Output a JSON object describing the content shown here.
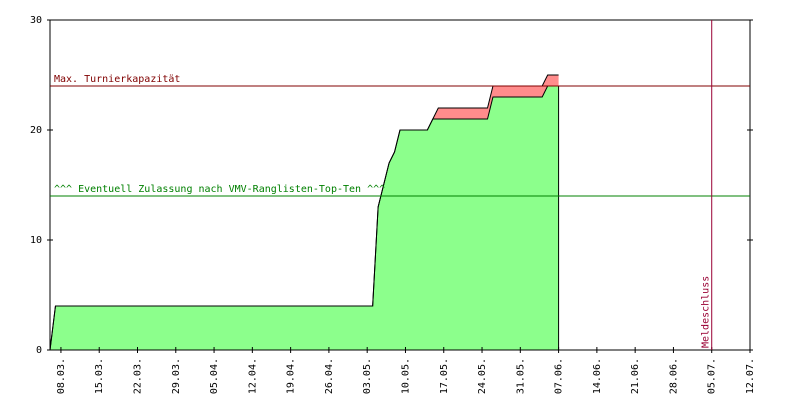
{
  "chart_data": {
    "type": "stacked-area",
    "x": [
      "06.03.",
      "07.03.",
      "04.05.",
      "05.05.",
      "07.05.",
      "08.05.",
      "09.05.",
      "14.05.",
      "15.05.",
      "16.05.",
      "25.05.",
      "26.05.",
      "04.06.",
      "05.06.",
      "07.06."
    ],
    "series": [
      {
        "color": "#8cff8c",
        "values": [
          0,
          4,
          4,
          13,
          17,
          18,
          20,
          20,
          21,
          21,
          21,
          23,
          23,
          24,
          24
        ]
      },
      {
        "color": "#ff8c8c",
        "values": [
          0,
          0,
          0,
          0,
          0,
          0,
          0,
          0,
          0,
          1,
          1,
          1,
          1,
          1,
          1
        ]
      }
    ],
    "xlim": [
      "06.03.",
      "12.07."
    ],
    "xticks": [
      "08.03.",
      "15.03.",
      "22.03.",
      "29.03.",
      "05.04.",
      "12.04.",
      "19.04.",
      "26.04.",
      "03.05.",
      "10.05.",
      "17.05.",
      "24.05.",
      "31.05.",
      "07.06.",
      "14.06.",
      "21.06.",
      "28.06.",
      "05.07.",
      "12.07."
    ],
    "ylim": [
      0,
      30
    ],
    "yticks": [
      0,
      10,
      20,
      30
    ],
    "hlines": [
      {
        "value": 24,
        "label": "Max. Turnierkapazität",
        "color": "#800000"
      },
      {
        "value": 14,
        "label": "^^^ Eventuell Zulassung nach VMV-Ranglisten-Top-Ten ^^^",
        "color": "#008000"
      }
    ],
    "vlines": [
      {
        "x": "05.07.",
        "label": "Meldeschluss",
        "color": "#990033"
      }
    ]
  }
}
